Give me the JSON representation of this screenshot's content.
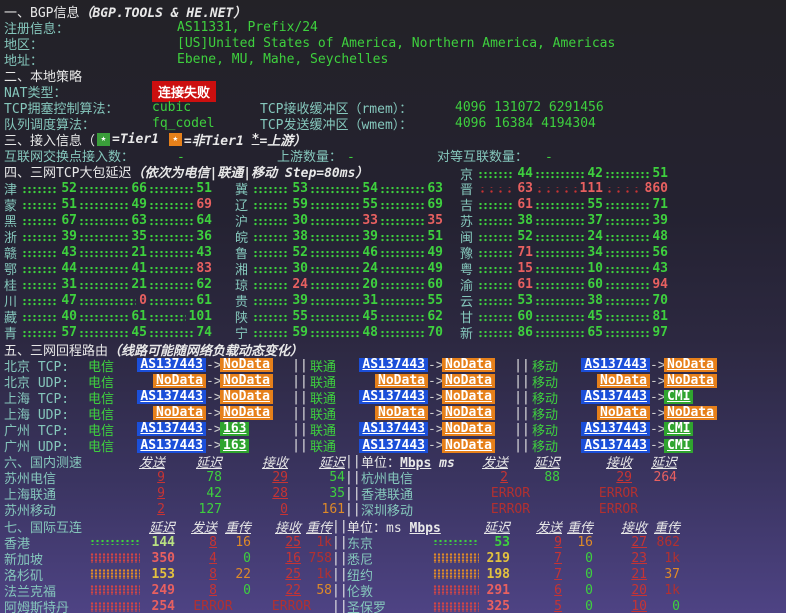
{
  "colors": {
    "teal": "#85c7bc",
    "green": "#3ed03e",
    "red": "#e86060",
    "red_underline": "#c53434",
    "dark_red": "#b23030",
    "orange": "#df8a28",
    "yellow": "#e3c23e",
    "pale_green": "#b9e282",
    "white": "#e8e8e8",
    "badge_blue": "#1b4fd9",
    "badge_orange": "#e6801a",
    "badge_green": "#2fa42f",
    "nat_badge_red": "#cc0f0f"
  },
  "sec1": {
    "title": "一、BGP信息",
    "title_paren": "（BGP.TOOLS & HE.NET）",
    "rows": [
      {
        "label": "注册信息：",
        "value": "AS11331, Prefix/24"
      },
      {
        "label": "地区：",
        "value": "[US]United States of America, Northern America, Americas"
      },
      {
        "label": "地址：",
        "value": "Ebene, MU, Mahe, Seychelles"
      }
    ]
  },
  "sec2": {
    "title": "二、本地策略",
    "nat_label": "NAT类型：",
    "nat_badge": "连接失败",
    "rows": [
      {
        "label": "TCP拥塞控制算法：",
        "value": "cubic",
        "label2": "TCP接收缓冲区（rmem）：",
        "value2": "4096 131072 6291456"
      },
      {
        "label": "队列调度算法：",
        "value": "fq_codel",
        "label2": "TCP发送缓冲区（wmem）：",
        "value2": "4096 16384 4194304"
      }
    ]
  },
  "sec3": {
    "title": "三、接入信息（",
    "legend_tier1": "=Tier1 ",
    "legend_non_tier1": "=非Tier1 ",
    "legend_star": "*",
    "legend_upstream": "=上游）",
    "star_glyph": "★",
    "stats": [
      {
        "label": "互联网交换点接入数：",
        "value": "-"
      },
      {
        "label": "上游数量：",
        "value": "-"
      },
      {
        "label": "对等互联数量：",
        "value": "-"
      }
    ]
  },
  "sec4": {
    "title": "四、三网TCP大包延迟",
    "title_paren": "（依次为电信|联通|移动 Step=80ms）",
    "first": {
      "p": "京",
      "v": [
        [
          "44",
          "g"
        ],
        [
          "42",
          "g"
        ],
        [
          "51",
          "g"
        ]
      ]
    },
    "rows": [
      [
        {
          "p": "津",
          "v": [
            [
              "52",
              "g"
            ],
            [
              "66",
              "g"
            ],
            [
              "51",
              "g"
            ]
          ]
        },
        {
          "p": "冀",
          "v": [
            [
              "53",
              "g"
            ],
            [
              "54",
              "g"
            ],
            [
              "63",
              "g"
            ]
          ]
        },
        {
          "p": "晋",
          "lr": true,
          "v": [
            [
              "63",
              "r"
            ],
            [
              "111",
              "r"
            ],
            [
              "860",
              "r"
            ]
          ]
        }
      ],
      [
        {
          "p": "蒙",
          "v": [
            [
              "51",
              "g"
            ],
            [
              "49",
              "g"
            ],
            [
              "69",
              "r"
            ]
          ]
        },
        {
          "p": "辽",
          "v": [
            [
              "59",
              "g"
            ],
            [
              "55",
              "g"
            ],
            [
              "69",
              "g"
            ]
          ]
        },
        {
          "p": "吉",
          "v": [
            [
              "61",
              "r"
            ],
            [
              "55",
              "g"
            ],
            [
              "71",
              "g"
            ]
          ]
        }
      ],
      [
        {
          "p": "黑",
          "v": [
            [
              "67",
              "g"
            ],
            [
              "63",
              "g"
            ],
            [
              "64",
              "g"
            ]
          ]
        },
        {
          "p": "沪",
          "v": [
            [
              "30",
              "g"
            ],
            [
              "33",
              "r"
            ],
            [
              "35",
              "r"
            ]
          ]
        },
        {
          "p": "苏",
          "v": [
            [
              "38",
              "g"
            ],
            [
              "37",
              "g"
            ],
            [
              "39",
              "g"
            ]
          ]
        }
      ],
      [
        {
          "p": "浙",
          "v": [
            [
              "39",
              "g"
            ],
            [
              "35",
              "g"
            ],
            [
              "36",
              "g"
            ]
          ]
        },
        {
          "p": "皖",
          "v": [
            [
              "38",
              "g"
            ],
            [
              "39",
              "g"
            ],
            [
              "51",
              "g"
            ]
          ]
        },
        {
          "p": "闽",
          "v": [
            [
              "52",
              "g"
            ],
            [
              "24",
              "g"
            ],
            [
              "48",
              "g"
            ]
          ]
        }
      ],
      [
        {
          "p": "赣",
          "v": [
            [
              "43",
              "g"
            ],
            [
              "21",
              "g"
            ],
            [
              "43",
              "g"
            ]
          ]
        },
        {
          "p": "鲁",
          "v": [
            [
              "52",
              "g"
            ],
            [
              "46",
              "g"
            ],
            [
              "49",
              "g"
            ]
          ]
        },
        {
          "p": "豫",
          "v": [
            [
              "71",
              "r"
            ],
            [
              "34",
              "g"
            ],
            [
              "56",
              "g"
            ]
          ]
        }
      ],
      [
        {
          "p": "鄂",
          "v": [
            [
              "44",
              "g"
            ],
            [
              "41",
              "g"
            ],
            [
              "83",
              "r"
            ]
          ]
        },
        {
          "p": "湘",
          "v": [
            [
              "30",
              "g"
            ],
            [
              "24",
              "g"
            ],
            [
              "49",
              "g"
            ]
          ]
        },
        {
          "p": "粤",
          "v": [
            [
              "15",
              "r"
            ],
            [
              "10",
              "g"
            ],
            [
              "43",
              "g"
            ]
          ]
        }
      ],
      [
        {
          "p": "桂",
          "v": [
            [
              "31",
              "g"
            ],
            [
              "21",
              "g"
            ],
            [
              "62",
              "g"
            ]
          ]
        },
        {
          "p": "琼",
          "v": [
            [
              "24",
              "r"
            ],
            [
              "20",
              "g"
            ],
            [
              "60",
              "g"
            ]
          ]
        },
        {
          "p": "渝",
          "v": [
            [
              "61",
              "r"
            ],
            [
              "60",
              "g"
            ],
            [
              "94",
              "r"
            ]
          ]
        }
      ],
      [
        {
          "p": "川",
          "v": [
            [
              "47",
              "g"
            ],
            [
              "0",
              "r"
            ],
            [
              "61",
              "g"
            ]
          ]
        },
        {
          "p": "贵",
          "v": [
            [
              "39",
              "g"
            ],
            [
              "31",
              "g"
            ],
            [
              "55",
              "g"
            ]
          ]
        },
        {
          "p": "云",
          "v": [
            [
              "53",
              "g"
            ],
            [
              "38",
              "g"
            ],
            [
              "70",
              "g"
            ]
          ]
        }
      ],
      [
        {
          "p": "藏",
          "v": [
            [
              "40",
              "g"
            ],
            [
              "61",
              "g"
            ],
            [
              "101",
              "g"
            ]
          ]
        },
        {
          "p": "陕",
          "v": [
            [
              "55",
              "g"
            ],
            [
              "45",
              "g"
            ],
            [
              "62",
              "g"
            ]
          ]
        },
        {
          "p": "甘",
          "v": [
            [
              "60",
              "g"
            ],
            [
              "45",
              "g"
            ],
            [
              "81",
              "g"
            ]
          ]
        }
      ],
      [
        {
          "p": "青",
          "v": [
            [
              "57",
              "g"
            ],
            [
              "45",
              "g"
            ],
            [
              "74",
              "g"
            ]
          ]
        },
        {
          "p": "宁",
          "v": [
            [
              "59",
              "g"
            ],
            [
              "48",
              "g"
            ],
            [
              "70",
              "g"
            ]
          ]
        },
        {
          "p": "新",
          "v": [
            [
              "86",
              "g"
            ],
            [
              "65",
              "g"
            ],
            [
              "97",
              "g"
            ]
          ]
        }
      ]
    ]
  },
  "sec5": {
    "title": "五、三网回程路由",
    "title_paren": "（线路可能随网络负载动态变化）",
    "arrow": "->",
    "sep": "||",
    "rows": [
      {
        "label": "北京 TCP:",
        "segs": [
          {
            "isp": "电信",
            "from": "AS137443",
            "ft": "b",
            "to": "NoData",
            "tt": "o"
          },
          {
            "isp": "联通",
            "from": "AS137443",
            "ft": "b",
            "to": "NoData",
            "tt": "o"
          },
          {
            "isp": "移动",
            "from": "AS137443",
            "ft": "b",
            "to": "NoData",
            "tt": "o"
          }
        ]
      },
      {
        "label": "北京 UDP:",
        "segs": [
          {
            "isp": "电信",
            "from": "NoData",
            "ft": "o",
            "to": "NoData",
            "tt": "o"
          },
          {
            "isp": "联通",
            "from": "NoData",
            "ft": "o",
            "to": "NoData",
            "tt": "o"
          },
          {
            "isp": "移动",
            "from": "NoData",
            "ft": "o",
            "to": "NoData",
            "tt": "o"
          }
        ]
      },
      {
        "label": "上海 TCP:",
        "segs": [
          {
            "isp": "电信",
            "from": "AS137443",
            "ft": "b",
            "to": "NoData",
            "tt": "o"
          },
          {
            "isp": "联通",
            "from": "AS137443",
            "ft": "b",
            "to": "NoData",
            "tt": "o"
          },
          {
            "isp": "移动",
            "from": "AS137443",
            "ft": "b",
            "to": "CMI",
            "tt": "gn"
          }
        ]
      },
      {
        "label": "上海 UDP:",
        "segs": [
          {
            "isp": "电信",
            "from": "NoData",
            "ft": "o",
            "to": "NoData",
            "tt": "o"
          },
          {
            "isp": "联通",
            "from": "NoData",
            "ft": "o",
            "to": "NoData",
            "tt": "o"
          },
          {
            "isp": "移动",
            "from": "NoData",
            "ft": "o",
            "to": "NoData",
            "tt": "o"
          }
        ]
      },
      {
        "label": "广州 TCP:",
        "segs": [
          {
            "isp": "电信",
            "from": "AS137443",
            "ft": "b",
            "to": "163",
            "tt": "gn"
          },
          {
            "isp": "联通",
            "from": "AS137443",
            "ft": "b",
            "to": "NoData",
            "tt": "o"
          },
          {
            "isp": "移动",
            "from": "AS137443",
            "ft": "b",
            "to": "CMI",
            "tt": "gn"
          }
        ]
      },
      {
        "label": "广州 UDP:",
        "segs": [
          {
            "isp": "电信",
            "from": "AS137443",
            "ft": "b",
            "to": "163",
            "tt": "gn"
          },
          {
            "isp": "联通",
            "from": "AS137443",
            "ft": "b",
            "to": "NoData",
            "tt": "o"
          },
          {
            "isp": "移动",
            "from": "AS137443",
            "ft": "b",
            "to": "CMI",
            "tt": "gn"
          }
        ]
      }
    ]
  },
  "sec6": {
    "title": "六、国内测速",
    "headers": [
      "发送",
      "延迟",
      "接收",
      "延迟"
    ],
    "sep": "||",
    "unit_label": "单位：",
    "unit_value": "Mbps",
    "unit_value2": "ms",
    "error_text": "ERROR",
    "rows_left": [
      {
        "city": "苏州电信",
        "vals": [
          [
            "9",
            "ru"
          ],
          [
            "78",
            "g"
          ],
          [
            "29",
            "ru"
          ],
          [
            "54",
            "g"
          ]
        ]
      },
      {
        "city": "上海联通",
        "vals": [
          [
            "9",
            "ru"
          ],
          [
            "42",
            "g"
          ],
          [
            "28",
            "ru"
          ],
          [
            "35",
            "g"
          ]
        ]
      },
      {
        "city": "苏州移动",
        "vals": [
          [
            "2",
            "ru"
          ],
          [
            "127",
            "g"
          ],
          [
            "0",
            "ru"
          ],
          [
            "161",
            "o"
          ]
        ]
      }
    ],
    "rows_right": [
      {
        "city": "杭州电信",
        "vals": [
          [
            "2",
            "ru"
          ],
          [
            "88",
            "g"
          ],
          [
            "29",
            "ru"
          ],
          [
            "264",
            "r"
          ]
        ]
      },
      {
        "city": "香港联通",
        "error": true
      },
      {
        "city": "深圳移动",
        "error": true
      }
    ]
  },
  "sec7": {
    "title": "七、国际互连",
    "headers": [
      "延迟",
      "发送",
      "重传",
      "接收",
      "重传"
    ],
    "sep": "||",
    "unit_label": "单位：",
    "unit_value": "ms",
    "unit_value2": "Mbps",
    "error_text": "ERROR",
    "rows_left": [
      {
        "city": "香港",
        "lat": "144",
        "latc": "pg",
        "bar": "g",
        "vals": [
          [
            "8",
            "ru"
          ],
          [
            "16",
            "o"
          ],
          [
            "25",
            "ru"
          ],
          [
            "1k",
            "dr"
          ]
        ]
      },
      {
        "city": "新加坡",
        "lat": "350",
        "latc": "r",
        "bar": "r",
        "vals": [
          [
            "4",
            "ru"
          ],
          [
            "0",
            "g"
          ],
          [
            "16",
            "ru"
          ],
          [
            "758",
            "dr"
          ]
        ]
      },
      {
        "city": "洛杉矶",
        "lat": "153",
        "latc": "y",
        "bar": "o",
        "vals": [
          [
            "8",
            "ru"
          ],
          [
            "22",
            "o"
          ],
          [
            "25",
            "ru"
          ],
          [
            "1k",
            "dr"
          ]
        ]
      },
      {
        "city": "法兰克福",
        "lat": "249",
        "latc": "r",
        "bar": "r",
        "vals": [
          [
            "8",
            "ru"
          ],
          [
            "0",
            "g"
          ],
          [
            "22",
            "ru"
          ],
          [
            "58",
            "o"
          ]
        ]
      },
      {
        "city": "阿姆斯特丹",
        "lat": "254",
        "latc": "r",
        "bar": "r",
        "error": true
      }
    ],
    "rows_right": [
      {
        "city": "东京",
        "lat": "53",
        "latc": "g",
        "bar": "g",
        "vals": [
          [
            "9",
            "ru"
          ],
          [
            "16",
            "o"
          ],
          [
            "27",
            "ru"
          ],
          [
            "862",
            "dr"
          ]
        ]
      },
      {
        "city": "悉尼",
        "lat": "219",
        "latc": "y",
        "bar": "o",
        "vals": [
          [
            "7",
            "ru"
          ],
          [
            "0",
            "g"
          ],
          [
            "23",
            "ru"
          ],
          [
            "1k",
            "dr"
          ]
        ]
      },
      {
        "city": "纽约",
        "lat": "198",
        "latc": "y",
        "bar": "o",
        "vals": [
          [
            "7",
            "ru"
          ],
          [
            "0",
            "g"
          ],
          [
            "21",
            "ru"
          ],
          [
            "37",
            "o"
          ]
        ]
      },
      {
        "city": "伦敦",
        "lat": "291",
        "latc": "r",
        "bar": "r",
        "vals": [
          [
            "6",
            "ru"
          ],
          [
            "0",
            "g"
          ],
          [
            "20",
            "ru"
          ],
          [
            "1k",
            "dr"
          ]
        ]
      },
      {
        "city": "圣保罗",
        "lat": "325",
        "latc": "r",
        "bar": "r",
        "vals": [
          [
            "5",
            "ru"
          ],
          [
            "0",
            "g"
          ],
          [
            "10",
            "ru"
          ],
          [
            "0",
            "g"
          ]
        ]
      }
    ]
  }
}
